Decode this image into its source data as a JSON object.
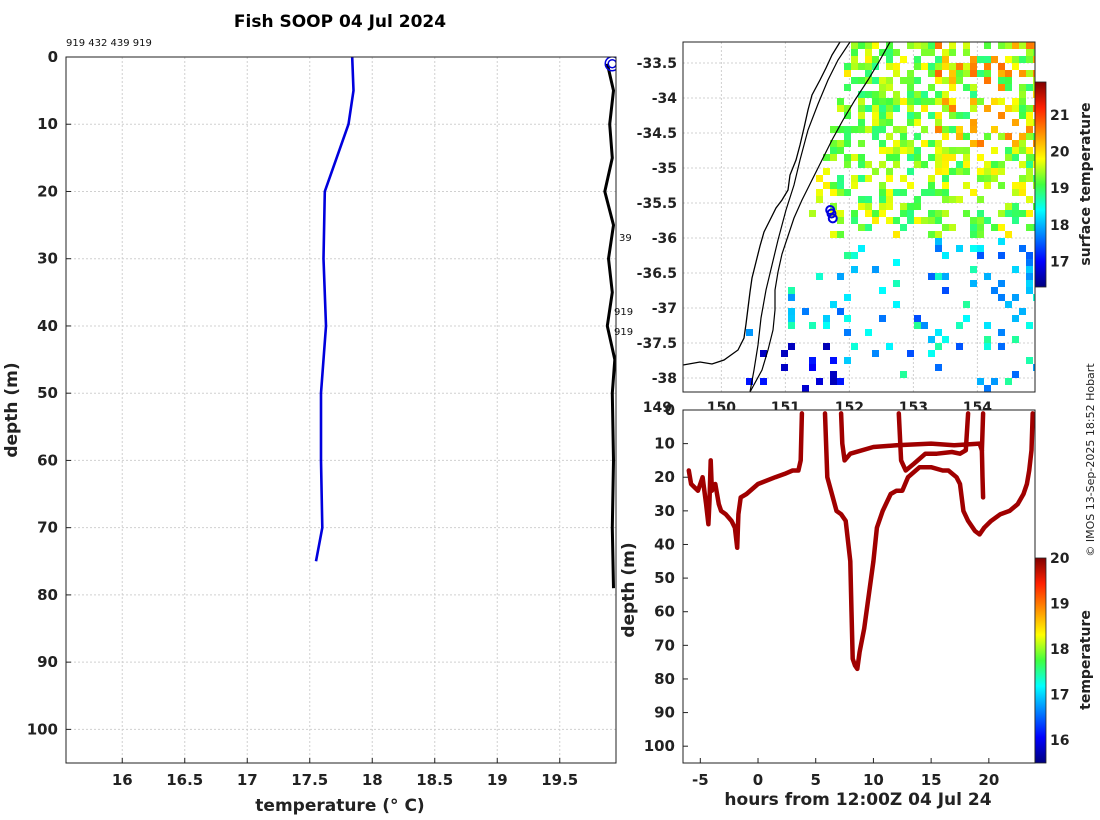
{
  "figure_title": "Fish SOOP 04 Jul 2024",
  "copyright": "© IMOS 13-Sep-2025 18:52 Hobart",
  "chart_data": [
    {
      "id": "profile",
      "type": "line",
      "title": "Fish SOOP 04 Jul 2024",
      "annotation_top": "919 432 439 919",
      "side_labels": [
        "39",
        "919",
        "919"
      ],
      "xlabel": "temperature (° C)",
      "ylabel": "depth (m)",
      "xlim": [
        15.55,
        19.95
      ],
      "ylim": [
        0,
        105
      ],
      "y_inverted": true,
      "xticks": [
        16,
        16.5,
        17,
        17.5,
        18,
        18.5,
        19,
        19.5
      ],
      "xtick_labels": [
        "16",
        "16.5",
        "17",
        "17.5",
        "18",
        "18.5",
        "19",
        "19.5"
      ],
      "yticks": [
        0,
        10,
        20,
        30,
        40,
        50,
        60,
        70,
        80,
        90,
        100
      ],
      "ytick_labels": [
        "0",
        "10",
        "20",
        "30",
        "40",
        "50",
        "60",
        "70",
        "80",
        "90",
        "100"
      ],
      "grid": true,
      "series": [
        {
          "name": "profile",
          "color": "#0000dd",
          "points": [
            [
              17.84,
              0
            ],
            [
              17.85,
              5
            ],
            [
              17.81,
              10
            ],
            [
              17.62,
              20
            ],
            [
              17.61,
              30
            ],
            [
              17.63,
              40
            ],
            [
              17.59,
              50
            ],
            [
              17.59,
              60
            ],
            [
              17.6,
              70
            ],
            [
              17.55,
              75
            ]
          ]
        },
        {
          "name": "along-track casts",
          "color": "#000000",
          "points": [
            [
              19.88,
              1
            ],
            [
              19.93,
              5
            ],
            [
              19.9,
              10
            ],
            [
              19.92,
              15
            ],
            [
              19.86,
              20
            ],
            [
              19.93,
              25
            ],
            [
              19.89,
              30
            ],
            [
              19.92,
              35
            ],
            [
              19.88,
              40
            ],
            [
              19.94,
              45
            ],
            [
              19.92,
              50
            ],
            [
              19.93,
              60
            ],
            [
              19.92,
              70
            ],
            [
              19.93,
              79
            ]
          ]
        }
      ],
      "markers": [
        {
          "x": 19.92,
          "y": 1,
          "shape": "circle",
          "color": "#0000dd"
        }
      ]
    },
    {
      "id": "map",
      "type": "heatmap",
      "xlim": [
        149.4,
        154.9
      ],
      "ylim": [
        -38.2,
        -33.2
      ],
      "xticks": [
        149,
        150,
        151,
        152,
        153,
        154
      ],
      "xtick_labels": [
        "149",
        "150",
        "151",
        "152",
        "153",
        "154"
      ],
      "yticks": [
        -33.5,
        -34,
        -34.5,
        -35,
        -35.5,
        -36,
        -36.5,
        -37,
        -37.5,
        -38
      ],
      "ytick_labels": [
        "-33.5",
        "-34",
        "-34.5",
        "-35",
        "-35.5",
        "-36",
        "-36.5",
        "-37",
        "-37.5",
        "-38"
      ],
      "colorbar": {
        "label": "surface temperature",
        "range": [
          16.3,
          21.9
        ],
        "ticks": [
          17,
          18,
          19,
          20,
          21
        ],
        "tick_labels": [
          "17",
          "18",
          "19",
          "20",
          "21"
        ]
      },
      "track": [
        [
          151.7,
          -35.6
        ],
        [
          151.72,
          -35.65
        ],
        [
          151.74,
          -35.72
        ]
      ]
    },
    {
      "id": "depth_time",
      "type": "scatter",
      "xlabel": "hours from 12:00Z 04 Jul 24",
      "ylabel": "depth (m)",
      "xlim": [
        -6.5,
        24
      ],
      "ylim": [
        0,
        105
      ],
      "y_inverted": true,
      "xticks": [
        -5,
        0,
        5,
        10,
        15,
        20
      ],
      "xtick_labels": [
        "-5",
        "0",
        "5",
        "10",
        "15",
        "20"
      ],
      "yticks": [
        0,
        10,
        20,
        30,
        40,
        50,
        60,
        70,
        80,
        90,
        100
      ],
      "ytick_labels": [
        "0",
        "10",
        "20",
        "30",
        "40",
        "50",
        "60",
        "70",
        "80",
        "90",
        "100"
      ],
      "color": "#a00000",
      "colorbar": {
        "label": "temperature",
        "range": [
          15.5,
          20
        ],
        "ticks": [
          16,
          17,
          18,
          19,
          20
        ],
        "tick_labels": [
          "16",
          "17",
          "18",
          "19",
          "20"
        ]
      },
      "segments": [
        [
          [
            -6.0,
            18
          ],
          [
            -5.8,
            22
          ],
          [
            -5.2,
            24
          ],
          [
            -4.8,
            20
          ],
          [
            -4.5,
            28
          ],
          [
            -4.3,
            34
          ],
          [
            -4.2,
            27
          ],
          [
            -4.1,
            15
          ],
          [
            -4.0,
            24
          ],
          [
            -3.7,
            22
          ],
          [
            -3.4,
            28
          ],
          [
            -3.2,
            30
          ],
          [
            -2.8,
            31
          ],
          [
            -2.3,
            33
          ],
          [
            -2.0,
            35
          ],
          [
            -1.8,
            41
          ],
          [
            -1.7,
            31
          ],
          [
            -1.5,
            26
          ],
          [
            -1.0,
            25
          ],
          [
            0,
            22
          ],
          [
            1.5,
            20
          ],
          [
            2.3,
            19
          ],
          [
            3.0,
            18
          ],
          [
            3.5,
            18
          ],
          [
            3.7,
            15
          ],
          [
            3.8,
            1
          ]
        ],
        [
          [
            5.8,
            1
          ],
          [
            6.0,
            20
          ],
          [
            6.4,
            25
          ],
          [
            6.8,
            30
          ],
          [
            7.2,
            31
          ],
          [
            7.6,
            33
          ],
          [
            8.0,
            45
          ],
          [
            8.1,
            60
          ],
          [
            8.2,
            74
          ],
          [
            8.4,
            76
          ],
          [
            8.6,
            77
          ],
          [
            8.8,
            72
          ],
          [
            9.2,
            65
          ],
          [
            9.6,
            55
          ],
          [
            10.0,
            45
          ],
          [
            10.3,
            35
          ],
          [
            10.8,
            30
          ],
          [
            11.5,
            25
          ],
          [
            12.0,
            24
          ],
          [
            12.5,
            24
          ],
          [
            13.0,
            20
          ],
          [
            14.0,
            17
          ],
          [
            15.0,
            17
          ],
          [
            16.0,
            18
          ],
          [
            16.5,
            18
          ],
          [
            17.2,
            20
          ],
          [
            17.5,
            22
          ],
          [
            17.8,
            30
          ],
          [
            18.2,
            33
          ],
          [
            18.8,
            36
          ],
          [
            19.2,
            37
          ],
          [
            19.6,
            35
          ],
          [
            20.2,
            33
          ],
          [
            21.0,
            31
          ],
          [
            21.8,
            30
          ],
          [
            22.5,
            28
          ],
          [
            23.0,
            25
          ],
          [
            23.3,
            22
          ],
          [
            23.5,
            18
          ],
          [
            23.7,
            12
          ],
          [
            23.8,
            1
          ]
        ],
        [
          [
            7.2,
            1
          ],
          [
            7.3,
            10
          ],
          [
            7.5,
            15
          ],
          [
            8.0,
            13
          ],
          [
            10.0,
            11
          ],
          [
            12.0,
            10.5
          ],
          [
            15.0,
            10
          ],
          [
            17.0,
            10.5
          ],
          [
            19.2,
            10
          ],
          [
            19.4,
            12
          ],
          [
            19.5,
            1
          ]
        ],
        [
          [
            12.2,
            1
          ],
          [
            12.4,
            15
          ],
          [
            12.8,
            18
          ],
          [
            13.5,
            16
          ],
          [
            14.5,
            13
          ],
          [
            15.5,
            13
          ],
          [
            16.8,
            12.5
          ],
          [
            17.5,
            13
          ],
          [
            18.0,
            12
          ],
          [
            18.2,
            1
          ]
        ],
        [
          [
            19.4,
            12
          ],
          [
            19.45,
            20
          ],
          [
            19.5,
            26
          ]
        ]
      ]
    }
  ]
}
